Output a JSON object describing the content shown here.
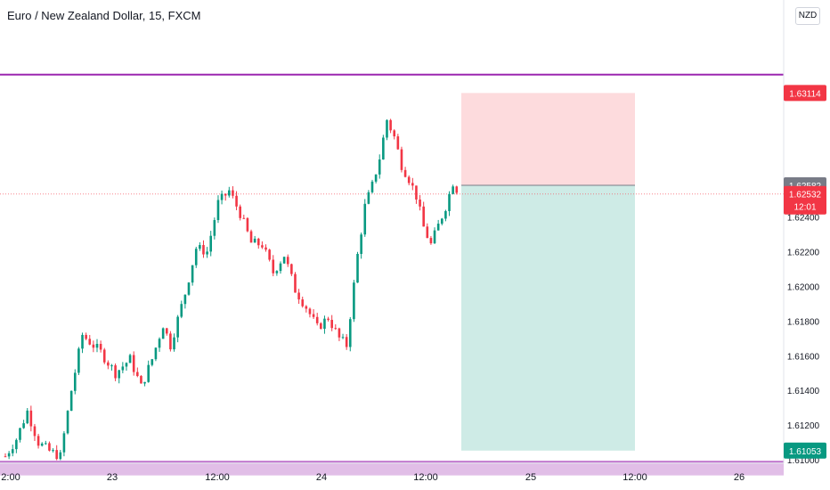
{
  "header": {
    "title": "Euro / New Zealand Dollar, 15, FXCM",
    "currency": "NZD"
  },
  "chart_data": {
    "type": "candlestick",
    "symbol": "EURNZD",
    "timeframe": "15",
    "source": "FXCM",
    "y_range": [
      1.6098,
      1.6365
    ],
    "price_ticks": [
      "1.62400",
      "1.62200",
      "1.62000",
      "1.61800",
      "1.61600",
      "1.61400",
      "1.61200",
      "1.61000"
    ],
    "x_tick_labels": [
      "2:00",
      "23",
      "12:00",
      "24",
      "12:00",
      "25",
      "12:00",
      "26"
    ],
    "horizontal_lines": [
      {
        "name": "resistance",
        "price": 1.6322,
        "color": "#9c27b0"
      },
      {
        "name": "current-price",
        "price": 1.62532,
        "color": "#f7525f"
      }
    ],
    "support_zone": {
      "from": 1.6091,
      "to": 1.6099,
      "color": "#e1bee7",
      "line_color": "#9c27b0"
    },
    "position": {
      "type": "short",
      "entry": 1.62582,
      "stop": 1.63114,
      "target": 1.61053
    },
    "price_labels": [
      {
        "name": "stop",
        "text": "1.63114",
        "bg": "#f23645",
        "fg": "#ffffff"
      },
      {
        "name": "entry",
        "text": "1.62582",
        "bg": "#787b86",
        "fg": "#ffffff"
      },
      {
        "name": "current",
        "text": "1.62532",
        "sub": "12:01",
        "bg": "#f23645",
        "fg": "#ffffff"
      },
      {
        "name": "target",
        "text": "1.61053",
        "bg": "#089981",
        "fg": "#ffffff"
      }
    ],
    "candle_path": [
      [
        0,
        1.6102
      ],
      [
        3,
        1.6112
      ],
      [
        6,
        1.6128
      ],
      [
        9,
        1.611
      ],
      [
        12,
        1.6105
      ],
      [
        15,
        1.6102
      ],
      [
        18,
        1.614
      ],
      [
        21,
        1.6172
      ],
      [
        23,
        1.6168
      ],
      [
        26,
        1.6162
      ],
      [
        30,
        1.615
      ],
      [
        34,
        1.6158
      ],
      [
        37,
        1.6142
      ],
      [
        40,
        1.6158
      ],
      [
        43,
        1.6178
      ],
      [
        45,
        1.6166
      ],
      [
        49,
        1.6196
      ],
      [
        52,
        1.6222
      ],
      [
        55,
        1.622
      ],
      [
        58,
        1.6248
      ],
      [
        61,
        1.6255
      ],
      [
        64,
        1.6242
      ],
      [
        67,
        1.6225
      ],
      [
        70,
        1.6224
      ],
      [
        73,
        1.6208
      ],
      [
        76,
        1.6218
      ],
      [
        79,
        1.6198
      ],
      [
        82,
        1.6188
      ],
      [
        85,
        1.6176
      ],
      [
        88,
        1.6182
      ],
      [
        91,
        1.617
      ],
      [
        93,
        1.6166
      ],
      [
        96,
        1.6218
      ],
      [
        98,
        1.6246
      ],
      [
        100,
        1.6258
      ],
      [
        102,
        1.6274
      ],
      [
        104,
        1.6296
      ],
      [
        106,
        1.6286
      ],
      [
        108,
        1.627
      ],
      [
        110,
        1.6262
      ],
      [
        112,
        1.6252
      ],
      [
        114,
        1.6234
      ],
      [
        116,
        1.6224
      ],
      [
        118,
        1.6235
      ],
      [
        120,
        1.6246
      ],
      [
        122,
        1.626
      ],
      [
        123,
        1.6256
      ]
    ],
    "volatility": 0.0006,
    "seed": 7
  }
}
